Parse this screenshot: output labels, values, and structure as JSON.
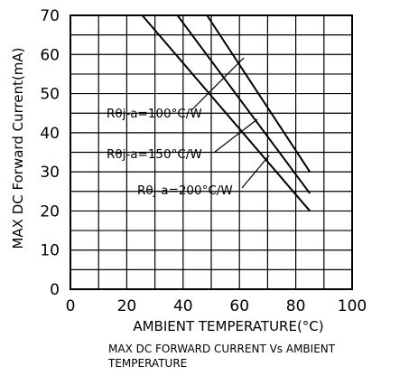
{
  "chart_data": {
    "type": "line",
    "title": "",
    "caption_line1": "MAX DC FORWARD CURRENT Vs AMBIENT",
    "caption_line2": "TEMPERATURE",
    "xlabel": "AMBIENT TEMPERATURE(°C)",
    "ylabel": "MAX DC Forward Current(mA)",
    "xlim": [
      0,
      100
    ],
    "ylim": [
      0,
      70
    ],
    "xticks": [
      0,
      20,
      40,
      60,
      80,
      100
    ],
    "yticks": [
      0,
      10,
      20,
      30,
      40,
      50,
      60,
      70
    ],
    "grid": true,
    "legend": "none",
    "series": [
      {
        "name": "Rθj-a=100°C/W",
        "x": [
          48.5,
          85
        ],
        "y": [
          70,
          30
        ]
      },
      {
        "name": "Rθj-a=150°C/W",
        "x": [
          38,
          85
        ],
        "y": [
          70,
          24.5
        ]
      },
      {
        "name": "Rθj-a=200°C/W",
        "x": [
          25.5,
          85
        ],
        "y": [
          70,
          20
        ]
      }
    ]
  }
}
